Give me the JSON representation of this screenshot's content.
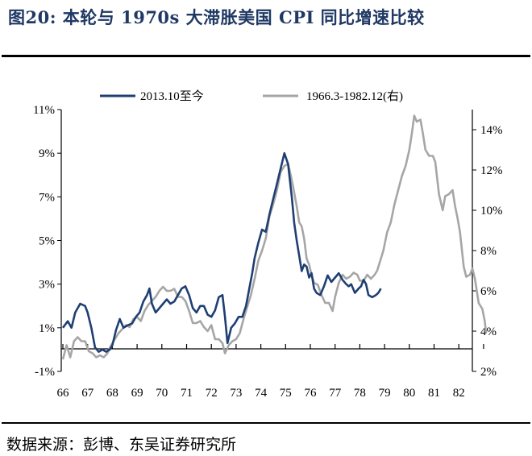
{
  "figure": {
    "title": "图20:  本轮与 1970s 大滞胀美国 CPI 同比增速比较",
    "source": "数据来源：彭博、东吴证券研究所"
  },
  "chart_data": {
    "type": "line",
    "title": "",
    "legend_position": "top",
    "grid": false,
    "x_tick_labels": [
      "66",
      "67",
      "68",
      "69",
      "70",
      "71",
      "72",
      "73",
      "74",
      "75",
      "76",
      "77",
      "78",
      "79",
      "80",
      "81",
      "82"
    ],
    "left_axis": {
      "ylim": [
        -1,
        11
      ],
      "ticks": [
        -1,
        1,
        3,
        5,
        7,
        9,
        11
      ],
      "tick_labels": [
        "-1%",
        "1%",
        "3%",
        "5%",
        "7%",
        "9%",
        "11%"
      ]
    },
    "right_axis": {
      "ylim": [
        2,
        15
      ],
      "ticks": [
        2,
        4,
        6,
        8,
        10,
        12,
        14
      ],
      "tick_labels": [
        "2%",
        "4%",
        "6%",
        "8%",
        "10%",
        "12%",
        "14%"
      ]
    },
    "series": [
      {
        "name": "2013.10至今",
        "axis": "left",
        "color": "#1f3f73",
        "points": [
          [
            66.0,
            1.0
          ],
          [
            66.2,
            1.3
          ],
          [
            66.35,
            1.0
          ],
          [
            66.5,
            1.7
          ],
          [
            66.7,
            2.1
          ],
          [
            66.9,
            2.0
          ],
          [
            67.0,
            1.7
          ],
          [
            67.15,
            1.0
          ],
          [
            67.3,
            0.1
          ],
          [
            67.45,
            -0.1
          ],
          [
            67.6,
            0.0
          ],
          [
            67.75,
            -0.1
          ],
          [
            67.9,
            0.0
          ],
          [
            68.0,
            0.2
          ],
          [
            68.15,
            0.9
          ],
          [
            68.3,
            1.4
          ],
          [
            68.45,
            1.0
          ],
          [
            68.6,
            1.1
          ],
          [
            68.8,
            1.2
          ],
          [
            68.95,
            1.5
          ],
          [
            69.1,
            1.7
          ],
          [
            69.25,
            2.2
          ],
          [
            69.4,
            2.5
          ],
          [
            69.5,
            2.8
          ],
          [
            69.6,
            2.1
          ],
          [
            69.75,
            1.7
          ],
          [
            69.9,
            1.9
          ],
          [
            70.05,
            2.1
          ],
          [
            70.2,
            2.3
          ],
          [
            70.35,
            2.1
          ],
          [
            70.5,
            2.2
          ],
          [
            70.65,
            2.5
          ],
          [
            70.8,
            2.8
          ],
          [
            70.95,
            2.9
          ],
          [
            71.1,
            2.5
          ],
          [
            71.25,
            1.9
          ],
          [
            71.4,
            1.7
          ],
          [
            71.55,
            2.0
          ],
          [
            71.7,
            2.0
          ],
          [
            71.85,
            1.6
          ],
          [
            72.0,
            1.5
          ],
          [
            72.15,
            1.8
          ],
          [
            72.3,
            2.4
          ],
          [
            72.45,
            2.5
          ],
          [
            72.55,
            1.5
          ],
          [
            72.65,
            0.3
          ],
          [
            72.8,
            1.0
          ],
          [
            72.95,
            1.2
          ],
          [
            73.1,
            1.5
          ],
          [
            73.25,
            1.5
          ],
          [
            73.4,
            2.0
          ],
          [
            73.55,
            2.9
          ],
          [
            73.65,
            3.5
          ],
          [
            73.75,
            4.2
          ],
          [
            73.9,
            4.9
          ],
          [
            74.05,
            5.5
          ],
          [
            74.2,
            5.4
          ],
          [
            74.35,
            6.2
          ],
          [
            74.5,
            6.9
          ],
          [
            74.65,
            7.6
          ],
          [
            74.8,
            8.3
          ],
          [
            74.95,
            9.0
          ],
          [
            75.1,
            8.5
          ],
          [
            75.25,
            7.0
          ],
          [
            75.35,
            5.8
          ],
          [
            75.45,
            5.0
          ],
          [
            75.55,
            4.3
          ],
          [
            75.65,
            3.6
          ],
          [
            75.75,
            3.9
          ],
          [
            75.85,
            3.8
          ],
          [
            75.95,
            3.3
          ],
          [
            76.05,
            3.5
          ],
          [
            76.15,
            2.8
          ],
          [
            76.25,
            2.6
          ],
          [
            76.4,
            2.5
          ],
          [
            76.55,
            2.9
          ],
          [
            76.7,
            3.4
          ],
          [
            76.85,
            3.1
          ],
          [
            77.0,
            3.3
          ],
          [
            77.15,
            3.5
          ],
          [
            77.3,
            3.2
          ],
          [
            77.45,
            3.0
          ],
          [
            77.55,
            2.9
          ],
          [
            77.65,
            3.0
          ],
          [
            77.8,
            2.6
          ],
          [
            77.95,
            2.8
          ],
          [
            78.05,
            2.9
          ],
          [
            78.15,
            3.2
          ],
          [
            78.25,
            3.0
          ],
          [
            78.35,
            2.5
          ],
          [
            78.5,
            2.4
          ],
          [
            78.65,
            2.5
          ],
          [
            78.75,
            2.6
          ],
          [
            78.85,
            2.8
          ]
        ]
      },
      {
        "name": "1966.3-1982.12(右)",
        "axis": "right",
        "color": "#a6a6a6",
        "points": [
          [
            66.0,
            2.6
          ],
          [
            66.15,
            3.3
          ],
          [
            66.3,
            2.7
          ],
          [
            66.45,
            3.5
          ],
          [
            66.6,
            3.7
          ],
          [
            66.75,
            3.5
          ],
          [
            66.9,
            3.5
          ],
          [
            67.05,
            3.0
          ],
          [
            67.2,
            2.9
          ],
          [
            67.35,
            2.7
          ],
          [
            67.5,
            2.8
          ],
          [
            67.65,
            2.7
          ],
          [
            67.8,
            2.9
          ],
          [
            67.95,
            3.3
          ],
          [
            68.1,
            3.6
          ],
          [
            68.25,
            3.9
          ],
          [
            68.4,
            4.1
          ],
          [
            68.55,
            4.3
          ],
          [
            68.7,
            4.2
          ],
          [
            68.85,
            4.6
          ],
          [
            69.0,
            4.7
          ],
          [
            69.15,
            4.5
          ],
          [
            69.3,
            5.0
          ],
          [
            69.45,
            5.3
          ],
          [
            69.6,
            5.5
          ],
          [
            69.75,
            5.7
          ],
          [
            69.9,
            6.0
          ],
          [
            70.05,
            6.2
          ],
          [
            70.2,
            6.0
          ],
          [
            70.35,
            6.0
          ],
          [
            70.5,
            6.1
          ],
          [
            70.65,
            5.7
          ],
          [
            70.8,
            5.7
          ],
          [
            70.95,
            5.5
          ],
          [
            71.1,
            5.0
          ],
          [
            71.25,
            4.4
          ],
          [
            71.4,
            4.4
          ],
          [
            71.55,
            4.5
          ],
          [
            71.7,
            4.2
          ],
          [
            71.85,
            4.0
          ],
          [
            72.0,
            4.3
          ],
          [
            72.15,
            3.6
          ],
          [
            72.3,
            3.6
          ],
          [
            72.45,
            3.4
          ],
          [
            72.55,
            2.9
          ],
          [
            72.7,
            3.3
          ],
          [
            72.85,
            3.5
          ],
          [
            73.0,
            3.6
          ],
          [
            73.15,
            3.9
          ],
          [
            73.3,
            4.6
          ],
          [
            73.45,
            5.2
          ],
          [
            73.6,
            5.8
          ],
          [
            73.75,
            6.6
          ],
          [
            73.9,
            7.5
          ],
          [
            74.05,
            8.0
          ],
          [
            74.2,
            8.6
          ],
          [
            74.35,
            9.7
          ],
          [
            74.5,
            10.3
          ],
          [
            74.65,
            11.0
          ],
          [
            74.8,
            11.9
          ],
          [
            74.95,
            12.2
          ],
          [
            75.1,
            12.3
          ],
          [
            75.2,
            11.8
          ],
          [
            75.3,
            11.2
          ],
          [
            75.45,
            10.2
          ],
          [
            75.55,
            9.4
          ],
          [
            75.65,
            9.2
          ],
          [
            75.75,
            8.6
          ],
          [
            75.85,
            7.6
          ],
          [
            75.95,
            7.3
          ],
          [
            76.05,
            6.8
          ],
          [
            76.15,
            6.4
          ],
          [
            76.3,
            6.3
          ],
          [
            76.45,
            5.8
          ],
          [
            76.6,
            5.4
          ],
          [
            76.75,
            5.4
          ],
          [
            76.9,
            5.0
          ],
          [
            77.0,
            5.7
          ],
          [
            77.15,
            6.4
          ],
          [
            77.3,
            6.8
          ],
          [
            77.45,
            6.6
          ],
          [
            77.6,
            6.7
          ],
          [
            77.75,
            6.9
          ],
          [
            77.9,
            6.8
          ],
          [
            78.0,
            6.5
          ],
          [
            78.15,
            6.5
          ],
          [
            78.3,
            6.8
          ],
          [
            78.45,
            6.6
          ],
          [
            78.6,
            6.8
          ],
          [
            78.7,
            7.0
          ],
          [
            78.8,
            7.4
          ],
          [
            78.95,
            8.0
          ],
          [
            79.1,
            8.9
          ],
          [
            79.25,
            9.4
          ],
          [
            79.4,
            10.3
          ],
          [
            79.55,
            11.0
          ],
          [
            79.7,
            11.7
          ],
          [
            79.85,
            12.2
          ],
          [
            80.0,
            13.0
          ],
          [
            80.1,
            13.8
          ],
          [
            80.2,
            14.7
          ],
          [
            80.3,
            14.4
          ],
          [
            80.45,
            14.5
          ],
          [
            80.55,
            13.8
          ],
          [
            80.65,
            13.0
          ],
          [
            80.8,
            12.7
          ],
          [
            80.95,
            12.7
          ],
          [
            81.05,
            12.4
          ],
          [
            81.2,
            10.8
          ],
          [
            81.35,
            10.0
          ],
          [
            81.45,
            10.7
          ],
          [
            81.6,
            10.8
          ],
          [
            81.75,
            11.0
          ],
          [
            81.85,
            10.2
          ],
          [
            81.95,
            9.6
          ],
          [
            82.05,
            8.9
          ],
          [
            82.2,
            7.2
          ],
          [
            82.3,
            6.7
          ],
          [
            82.45,
            6.8
          ],
          [
            82.55,
            7.1
          ],
          [
            82.65,
            6.6
          ],
          [
            82.8,
            5.4
          ],
          [
            82.95,
            5.1
          ],
          [
            83.05,
            4.5
          ],
          [
            83.1,
            3.9
          ]
        ]
      }
    ]
  }
}
